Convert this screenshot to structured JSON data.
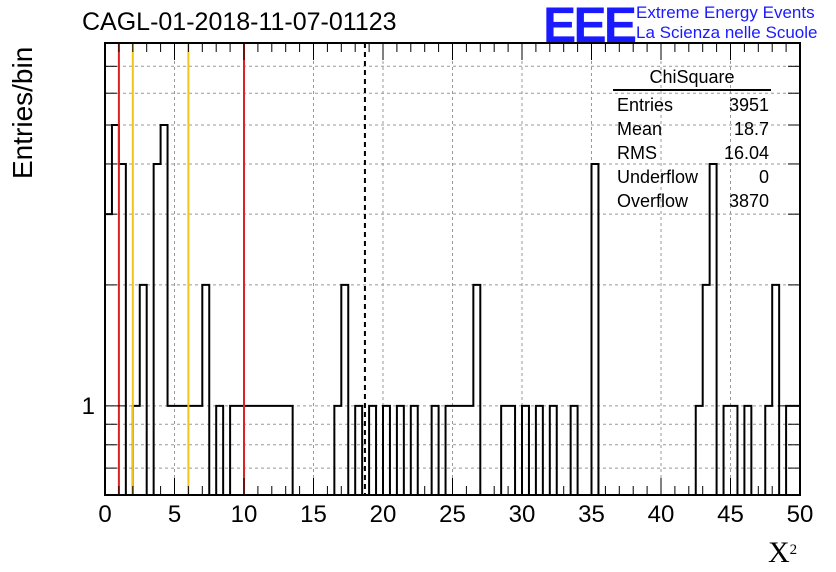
{
  "header": {
    "title": "CAGL-01-2018-11-07-01123",
    "logo_text": "EEE",
    "logo_line1": "Extreme Energy Events",
    "logo_line2": "La Scienza nelle Scuole"
  },
  "stats": {
    "title": "ChiSquare",
    "rows": [
      {
        "label": "Entries",
        "value": "3951"
      },
      {
        "label": "Mean",
        "value": "18.7"
      },
      {
        "label": "RMS",
        "value": "16.04"
      },
      {
        "label": "Underflow",
        "value": "0"
      },
      {
        "label": "Overflow",
        "value": "3870"
      }
    ]
  },
  "chart_data": {
    "type": "histogram",
    "title": "CAGL-01-2018-11-07-01123",
    "xlabel": "X²",
    "ylabel": "Entries/bin",
    "xlim": [
      0,
      50
    ],
    "y_scale": "log",
    "ylim": [
      0.6,
      8
    ],
    "bin_width": 0.5,
    "grid": true,
    "x_ticks": [
      0,
      5,
      10,
      15,
      20,
      25,
      30,
      35,
      40,
      45,
      50
    ],
    "y_tick_labels": [
      {
        "value": 1,
        "label": "1"
      }
    ],
    "counts": [
      3,
      5,
      4,
      0,
      1,
      2,
      0,
      4,
      5,
      1,
      1,
      1,
      1,
      1,
      2,
      0,
      1,
      0,
      1,
      1,
      1,
      1,
      1,
      1,
      1,
      1,
      1,
      0,
      0,
      0,
      0,
      0,
      0,
      1,
      2,
      0,
      1,
      0,
      1,
      0,
      1,
      0,
      1,
      0,
      1,
      0,
      0,
      1,
      0,
      1,
      1,
      1,
      1,
      2,
      0,
      0,
      0,
      1,
      1,
      0,
      1,
      0,
      1,
      0,
      1,
      0,
      0,
      1,
      0,
      0,
      4,
      0,
      0,
      0,
      0,
      0,
      0,
      0,
      0,
      0,
      0,
      0,
      0,
      0,
      0,
      1,
      2,
      4,
      0,
      1,
      1,
      0,
      1,
      0,
      0,
      1,
      2,
      0,
      1,
      1
    ],
    "vertical_lines": [
      {
        "x": 1,
        "color": "#dd2222",
        "style": "solid"
      },
      {
        "x": 2,
        "color": "#f2c418",
        "style": "solid"
      },
      {
        "x": 6,
        "color": "#f2c418",
        "style": "solid"
      },
      {
        "x": 10,
        "color": "#dd2222",
        "style": "solid"
      },
      {
        "x": 18.7,
        "color": "#000000",
        "style": "dashed"
      }
    ],
    "colors": {
      "histogram": "#000000",
      "grid": "#999999",
      "red": "#dd2222",
      "yellow": "#f2c418",
      "logo": "#1a1aff"
    }
  }
}
